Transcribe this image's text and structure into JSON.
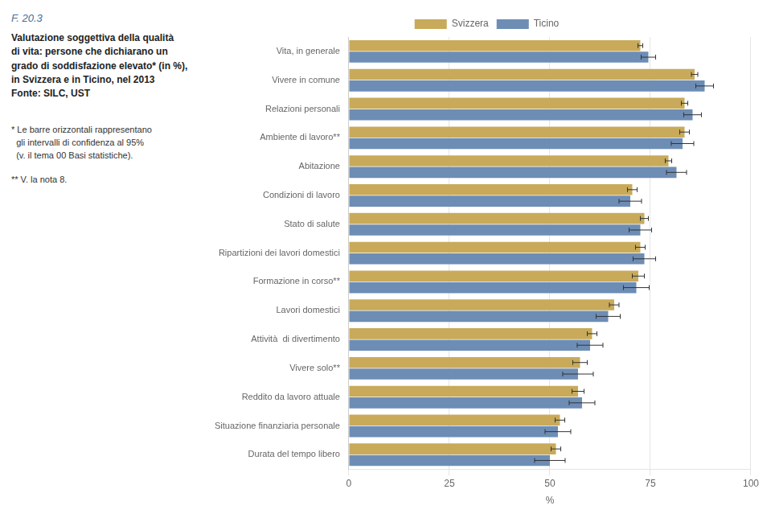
{
  "chart_data": {
    "type": "bar",
    "orientation": "horizontal",
    "subtitle": "F. 20.3",
    "title": "Valutazione soggettiva della qualità\ndi vita: persone che dichiarano un\ngrado di soddisfazione elevato* (in %),\nin Svizzera e in Ticino, nel 2013\nFonte: SILC, UST",
    "annotations": [
      "* Le barre orizzontali rappresentano\n  gli intervalli di confidenza al 95%\n  (v. il tema 00 Basi statistiche).",
      "** V. la nota 8."
    ],
    "categories": [
      "Vita, in generale",
      "Vivere in comune",
      "Relazioni personali",
      "Ambiente di lavoro**",
      "Abitazione",
      "Condizioni di lavoro",
      "Stato di salute",
      "Ripartizioni dei lavori domestici",
      "Formazione in corso**",
      "Lavori domestici",
      "Attività  di divertimento",
      "Vivere solo**",
      "Reddito da lavoro attuale",
      "Situazione finanziaria personale",
      "Durata del tempo libero"
    ],
    "series": [
      {
        "name": "Svizzera",
        "color": "#c8aa5a",
        "values": [
          72.5,
          86.0,
          83.5,
          83.5,
          79.5,
          70.5,
          73.5,
          72.5,
          72.0,
          66.0,
          60.5,
          57.5,
          57.0,
          52.5,
          51.5
        ],
        "errors": [
          0.6,
          0.8,
          0.8,
          1.2,
          0.8,
          1.2,
          1.0,
          1.2,
          1.5,
          1.2,
          1.2,
          1.8,
          1.5,
          1.2,
          1.2
        ]
      },
      {
        "name": "Ticino",
        "color": "#6d8db5",
        "values": [
          74.5,
          88.5,
          85.5,
          83.0,
          81.5,
          70.0,
          72.5,
          73.5,
          71.5,
          64.5,
          60.0,
          57.0,
          58.0,
          52.0,
          50.0
        ],
        "errors": [
          1.8,
          2.2,
          2.2,
          2.8,
          2.5,
          2.8,
          2.8,
          2.8,
          3.2,
          3.0,
          3.2,
          3.8,
          3.2,
          3.2,
          3.8
        ]
      }
    ],
    "xlabel": "%",
    "xlim": [
      0,
      100
    ],
    "xticks": [
      0,
      25,
      50,
      75,
      100
    ],
    "grid": true,
    "legend": "top"
  }
}
